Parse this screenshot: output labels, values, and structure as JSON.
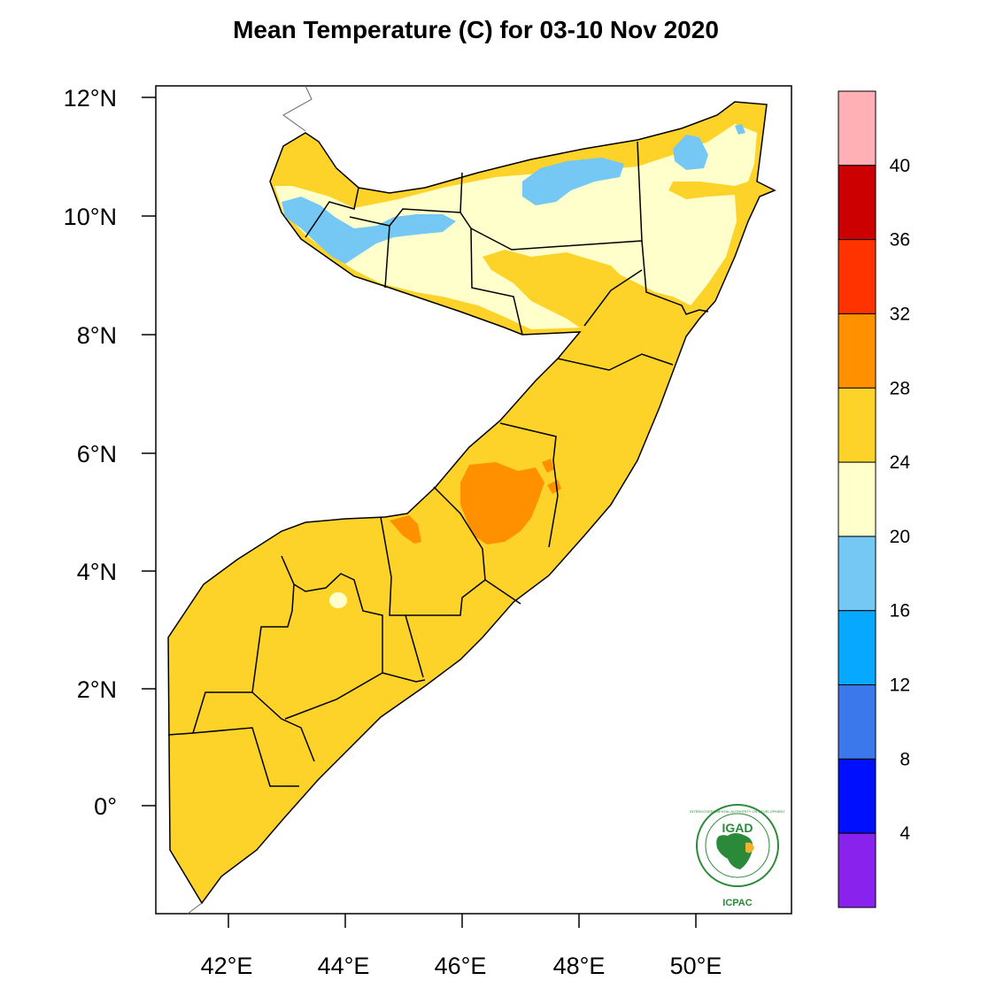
{
  "title": "Mean Temperature (C) for 03-10 Nov 2020",
  "map": {
    "region": "Somalia",
    "lat_ticks": [
      "12°N",
      "10°N",
      "8°N",
      "6°N",
      "4°N",
      "2°N",
      "0°"
    ],
    "lon_ticks": [
      "42°E",
      "44°E",
      "46°E",
      "48°E",
      "50°E"
    ],
    "lat_range": [
      -1.8,
      12.2
    ],
    "lon_range": [
      40.8,
      51.6
    ]
  },
  "colorbar": {
    "labels": [
      "40",
      "36",
      "32",
      "28",
      "24",
      "20",
      "16",
      "12",
      "8",
      "4"
    ],
    "colors": [
      "#ffb0b4",
      "#cc0000",
      "#ff3300",
      "#ff9000",
      "#fdd32a",
      "#ffffcc",
      "#74c8f3",
      "#07a8ff",
      "#3a78ec",
      "#0010ff",
      "#8a22ee"
    ]
  },
  "logo": {
    "name": "IGAD",
    "sub": "ICPAC",
    "ring_text": "INTERGOVERNMENTAL AUTHORITY ON DEVELOPMENT"
  }
}
